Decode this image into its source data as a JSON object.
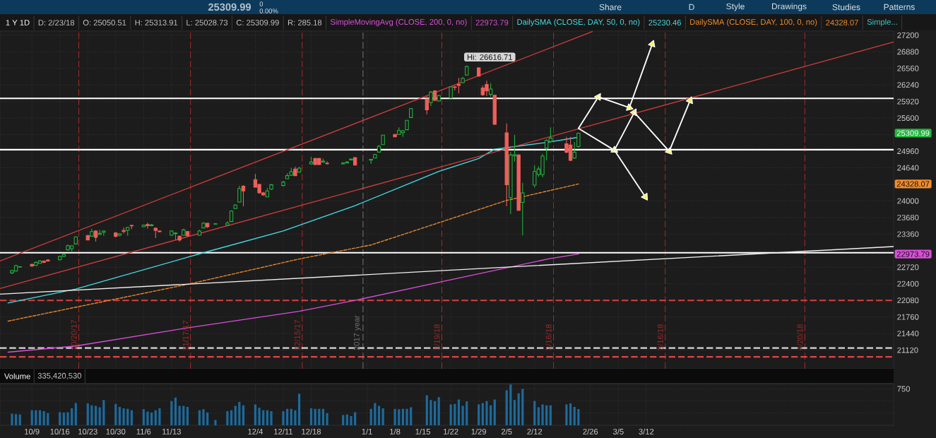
{
  "chart_data": [
    {
      "type": "candlestick",
      "x": [
        "2017-10-04",
        "2017-10-05",
        "2017-10-06",
        "2017-10-09",
        "2017-10-10",
        "2017-10-11",
        "2017-10-12",
        "2017-10-13",
        "2017-10-16",
        "2017-10-17",
        "2017-10-18",
        "2017-10-19",
        "2017-10-20",
        "2017-10-23",
        "2017-10-24",
        "2017-10-25",
        "2017-10-26",
        "2017-10-27",
        "2017-10-30",
        "2017-10-31",
        "2017-11-01",
        "2017-11-02",
        "2017-11-03",
        "2017-11-06",
        "2017-11-07",
        "2017-11-08",
        "2017-11-09",
        "2017-11-10",
        "2017-11-13",
        "2017-11-14",
        "2017-11-15",
        "2017-11-16",
        "2017-11-17",
        "2017-11-20",
        "2017-11-21",
        "2017-11-22",
        "2017-11-24",
        "2017-11-27",
        "2017-11-28",
        "2017-11-29",
        "2017-11-30",
        "2017-12-01",
        "2017-12-04",
        "2017-12-05",
        "2017-12-06",
        "2017-12-07",
        "2017-12-08",
        "2017-12-11",
        "2017-12-12",
        "2017-12-13",
        "2017-12-14",
        "2017-12-15",
        "2017-12-18",
        "2017-12-19",
        "2017-12-20",
        "2017-12-21",
        "2017-12-22",
        "2017-12-26",
        "2017-12-27",
        "2017-12-28",
        "2017-12-29",
        "2018-01-02",
        "2018-01-03",
        "2018-01-04",
        "2018-01-05",
        "2018-01-08",
        "2018-01-09",
        "2018-01-10",
        "2018-01-11",
        "2018-01-12",
        "2018-01-16",
        "2018-01-17",
        "2018-01-18",
        "2018-01-19",
        "2018-01-22",
        "2018-01-23",
        "2018-01-24",
        "2018-01-25",
        "2018-01-26",
        "2018-01-29",
        "2018-01-30",
        "2018-01-31",
        "2018-02-01",
        "2018-02-02",
        "2018-02-05",
        "2018-02-06",
        "2018-02-07",
        "2018-02-08",
        "2018-02-09",
        "2018-02-12",
        "2018-02-13",
        "2018-02-14",
        "2018-02-15",
        "2018-02-16",
        "2018-02-20",
        "2018-02-21",
        "2018-02-22",
        "2018-02-23"
      ],
      "ohlc": [
        [
          22610,
          22673,
          22591,
          22655
        ],
        [
          22646,
          22769,
          22637,
          22751
        ],
        [
          22723,
          22737,
          22710,
          22732
        ],
        [
          22773,
          22791,
          22728,
          22746
        ],
        [
          22755,
          22828,
          22746,
          22814
        ],
        [
          22796,
          22855,
          22787,
          22842
        ],
        [
          22837,
          22855,
          22801,
          22814
        ],
        [
          22860,
          22874,
          22828,
          22842
        ],
        [
          22864,
          22942,
          22855,
          22928
        ],
        [
          22928,
          22983,
          22919,
          22965
        ],
        [
          23056,
          23156,
          23046,
          23137
        ],
        [
          23078,
          23147,
          23024,
          23133
        ],
        [
          23169,
          23319,
          23160,
          23306
        ],
        [
          23329,
          23347,
          23238,
          23247
        ],
        [
          23319,
          23465,
          23310,
          23410
        ],
        [
          23420,
          23438,
          23215,
          23297
        ],
        [
          23351,
          23442,
          23342,
          23374
        ],
        [
          23397,
          23433,
          23329,
          23420
        ],
        [
          23383,
          23401,
          23292,
          23319
        ],
        [
          23338,
          23379,
          23319,
          23365
        ],
        [
          23429,
          23488,
          23374,
          23410
        ],
        [
          23433,
          23501,
          23329,
          23488
        ],
        [
          23529,
          23542,
          23456,
          23520
        ],
        [
          23501,
          23547,
          23492,
          23533
        ],
        [
          23547,
          23579,
          23465,
          23524
        ],
        [
          23524,
          23556,
          23511,
          23538
        ],
        [
          23474,
          23488,
          23283,
          23429
        ],
        [
          23420,
          23433,
          23392,
          23406
        ],
        [
          23338,
          23433,
          23329,
          23420
        ],
        [
          23369,
          23392,
          23251,
          23383
        ],
        [
          23319,
          23329,
          23215,
          23247
        ],
        [
          23338,
          23465,
          23329,
          23442
        ],
        [
          23410,
          23420,
          23319,
          23329
        ],
        [
          23338,
          23442,
          23329,
          23420
        ],
        [
          23479,
          23593,
          23470,
          23570
        ],
        [
          23570,
          23579,
          23479,
          23501
        ],
        [
          23552,
          23574,
          23542,
          23560
        ],
        [
          23533,
          23611,
          23520,
          23574
        ],
        [
          23602,
          23820,
          23593,
          23806
        ],
        [
          23852,
          23938,
          23843,
          23920
        ],
        [
          23979,
          24293,
          23970,
          24239
        ],
        [
          24284,
          24302,
          23897,
          24193
        ],
        [
          24411,
          24521,
          24257,
          24266
        ],
        [
          24320,
          24330,
          24138,
          24157
        ],
        [
          24157,
          24175,
          24102,
          24116
        ],
        [
          24079,
          24248,
          24070,
          24193
        ],
        [
          24229,
          24330,
          24211,
          24311
        ],
        [
          24298,
          24384,
          24284,
          24366
        ],
        [
          24430,
          24534,
          24421,
          24489
        ],
        [
          24498,
          24639,
          24484,
          24566
        ],
        [
          24616,
          24662,
          24480,
          24489
        ],
        [
          24557,
          24657,
          24548,
          24634
        ],
        [
          24715,
          24851,
          24701,
          24751
        ],
        [
          24819,
          24830,
          24692,
          24701
        ],
        [
          24819,
          24830,
          24690,
          24701
        ],
        [
          24751,
          24819,
          24738,
          24769
        ],
        [
          24728,
          24765,
          24701,
          24719
        ],
        [
          24715,
          24747,
          24706,
          24733
        ],
        [
          24733,
          24765,
          24728,
          24751
        ],
        [
          24792,
          24819,
          24788,
          24810
        ],
        [
          24838,
          24842,
          24688,
          24692
        ],
        [
          24788,
          24810,
          24715,
          24805
        ],
        [
          24829,
          24906,
          24824,
          24897
        ],
        [
          24942,
          25079,
          24933,
          25056
        ],
        [
          25088,
          25279,
          25079,
          25270
        ],
        [
          25284,
          25293,
          25229,
          25238
        ],
        [
          25284,
          25420,
          25275,
          25361
        ],
        [
          25320,
          25370,
          25238,
          25352
        ],
        [
          25375,
          25566,
          25366,
          25557
        ],
        [
          25611,
          25793,
          25602,
          25784
        ],
        [
          25966,
          26030,
          25670,
          25761
        ],
        [
          25898,
          26125,
          25830,
          26102
        ],
        [
          26125,
          26140,
          25930,
          25943
        ],
        [
          25930,
          26050,
          25920,
          26034
        ],
        [
          25989,
          26212,
          25980,
          26203
        ],
        [
          26203,
          26226,
          26135,
          26194
        ],
        [
          26253,
          26376,
          26080,
          26230
        ],
        [
          26285,
          26398,
          26270,
          26366
        ],
        [
          26430,
          26616.71,
          26420,
          26594
        ],
        [
          26571,
          26580,
          26400,
          26412
        ],
        [
          26180,
          26230,
          26030,
          26048
        ],
        [
          26248,
          26321,
          26025,
          26125
        ],
        [
          26057,
          26275,
          26012,
          26162
        ],
        [
          26043,
          26050,
          25470,
          25479
        ],
        [
          25315,
          25497,
          23896,
          24314
        ],
        [
          24064,
          24942,
          23746,
          24888
        ],
        [
          24870,
          25274,
          24760,
          24893
        ],
        [
          24888,
          24900,
          23805,
          23819
        ],
        [
          23973,
          24351,
          23336,
          24155
        ],
        [
          24305,
          24692,
          24260,
          24569
        ],
        [
          24510,
          24669,
          24465,
          24615
        ],
        [
          24510,
          24910,
          24455,
          24865
        ],
        [
          25020,
          25193,
          24783,
          25170
        ],
        [
          25147,
          25420,
          25125,
          25215
        ],
        [
          25102,
          25238,
          24920,
          24942
        ],
        [
          25079,
          25238,
          24770,
          24783
        ],
        [
          24829,
          25138,
          24810,
          24942
        ],
        [
          25050.51,
          25313.91,
          25028.73,
          25309.99
        ]
      ],
      "colors": [
        "#22b53c",
        "#22b53c",
        "#22b53c",
        "#ef5f5a",
        "#22b53c",
        "#22b53c",
        "#ef5f5a",
        "#ef5f5a",
        "#22b53c",
        "#22b53c",
        "#22b53c",
        "#22b53c",
        "#22b53c",
        "#ef5f5a",
        "#22b53c",
        "#ef5f5a",
        "#22b53c",
        "#22b53c",
        "#ef5f5a",
        "#22b53c",
        "#ef5f5a",
        "#22b53c",
        "#ef5f5a",
        "#22b53c",
        "#ef5f5a",
        "#22b53c",
        "#ef5f5a",
        "#ef5f5a",
        "#22b53c",
        "#22b53c",
        "#ef5f5a",
        "#22b53c",
        "#ef5f5a",
        "#22b53c",
        "#22b53c",
        "#ef5f5a",
        "#22b53c",
        "#22b53c",
        "#22b53c",
        "#22b53c",
        "#22b53c",
        "#ef5f5a",
        "#ef5f5a",
        "#ef5f5a",
        "#ef5f5a",
        "#22b53c",
        "#22b53c",
        "#22b53c",
        "#22b53c",
        "#22b53c",
        "#ef5f5a",
        "#22b53c",
        "#22b53c",
        "#ef5f5a",
        "#ef5f5a",
        "#22b53c",
        "#ef5f5a",
        "#22b53c",
        "#22b53c",
        "#22b53c",
        "#ef5f5a",
        "#22b53c",
        "#22b53c",
        "#22b53c",
        "#22b53c",
        "#ef5f5a",
        "#22b53c",
        "#22b53c",
        "#22b53c",
        "#22b53c",
        "#ef5f5a",
        "#22b53c",
        "#ef5f5a",
        "#22b53c",
        "#22b53c",
        "#ef5f5a",
        "#ef5f5a",
        "#22b53c",
        "#22b53c",
        "#ef5f5a",
        "#ef5f5a",
        "#ef5f5a",
        "#22b53c",
        "#ef5f5a",
        "#ef5f5a",
        "#22b53c",
        "#22b53c",
        "#ef5f5a",
        "#22b53c",
        "#22b53c",
        "#22b53c",
        "#22b53c",
        "#22b53c",
        "#22b53c",
        "#ef5f5a",
        "#ef5f5a",
        "#22b53c",
        "#22b53c"
      ],
      "series": [
        {
          "name": "SimpleMovingAvg (CLOSE, 200, 0, no)",
          "type": "line",
          "color": "#d94fd9",
          "x": [
            "2017-10-03",
            "2017-10-20",
            "2017-11-17",
            "2017-12-15",
            "2017-12-29",
            "2018-01-19",
            "2018-02-16",
            "2018-02-23"
          ],
          "values": [
            21080,
            21200,
            21550,
            21870,
            22080,
            22430,
            22890,
            22973.79
          ]
        },
        {
          "name": "DailySMA (CLOSE, DAY, 50, 0, no)",
          "type": "line",
          "color": "#45dde6",
          "x": [
            "2017-10-03",
            "2017-10-20",
            "2017-11-21",
            "2017-12-11",
            "2017-12-29",
            "2018-01-19",
            "2018-01-29",
            "2018-02-02",
            "2018-02-07",
            "2018-02-15",
            "2018-02-23"
          ],
          "values": [
            22030,
            22300,
            23000,
            23420,
            23910,
            24570,
            24820,
            25000,
            25050,
            25130,
            25230.46
          ]
        },
        {
          "name": "DailySMA (CLOSE, DAY, 100, 0, no)",
          "type": "line",
          "color": "#f08c2c",
          "line_style": "dashed",
          "x": [
            "2017-10-03",
            "2017-11-17",
            "2017-12-15",
            "2018-01-02",
            "2018-01-19",
            "2018-02-05",
            "2018-02-23"
          ],
          "values": [
            21680,
            22390,
            22880,
            23150,
            23580,
            24010,
            24328.07
          ]
        },
        {
          "type": "line",
          "color": "#d43c3c",
          "x": [
            "2017-10-01",
            "2018-02-26T12:00"
          ],
          "values": [
            22840,
            27270
          ]
        },
        {
          "type": "line",
          "color": "#d43c3c",
          "x": [
            "2017-10-01",
            "2018-05-13"
          ],
          "values": [
            22310,
            27070
          ]
        },
        {
          "type": "line",
          "color": "#f0f0f0",
          "x": [
            "2017-10-01",
            "2018-05-13"
          ],
          "values": [
            22200,
            23120
          ]
        },
        {
          "type": "line",
          "color": "#ffffff",
          "marker": "triangle",
          "x": [
            "2018-02-23",
            "2018-02-28"
          ],
          "values": [
            25400,
            26010
          ]
        },
        {
          "type": "line",
          "color": "#ffffff",
          "marker": "triangle",
          "x": [
            "2018-02-28",
            "2018-03-07T18:00"
          ],
          "values": [
            26010,
            25800
          ]
        },
        {
          "type": "line",
          "color": "#ffffff",
          "marker": "triangle",
          "x": [
            "2018-03-07T18:00",
            "2018-03-13T12:00"
          ],
          "values": [
            25800,
            27030
          ]
        },
        {
          "type": "line",
          "color": "#ffffff",
          "marker": "triangle",
          "x": [
            "2018-02-23",
            "2018-03-04"
          ],
          "values": [
            25400,
            24980
          ]
        },
        {
          "type": "line",
          "color": "#ffffff",
          "marker": "triangle",
          "x": [
            "2018-03-04",
            "2018-03-09"
          ],
          "values": [
            24980,
            25710
          ]
        },
        {
          "type": "line",
          "color": "#ffffff",
          "marker": "triangle",
          "x": [
            "2018-03-09",
            "2018-03-17T18:00"
          ],
          "values": [
            25710,
            24960
          ]
        },
        {
          "type": "line",
          "color": "#ffffff",
          "marker": "triangle",
          "x": [
            "2018-03-17T18:00",
            "2018-03-23"
          ],
          "values": [
            24960,
            25940
          ]
        },
        {
          "type": "line",
          "color": "#ffffff",
          "marker": "triangle",
          "x": [
            "2018-03-04",
            "2018-03-11T18:00"
          ],
          "values": [
            24980,
            24080
          ]
        }
      ],
      "xlim": [
        "2017-10-01",
        "2018-05-13"
      ],
      "ylim": [
        20760,
        27280
      ],
      "xticks": [
        "2017-10-09",
        "2017-10-16",
        "2017-10-23",
        "2017-10-30",
        "2017-11-06",
        "2017-11-13",
        "2017-12-04",
        "2017-12-11",
        "2017-12-18",
        "2018-01-01",
        "2018-01-08",
        "2018-01-15",
        "2018-01-22",
        "2018-01-29",
        "2018-02-05",
        "2018-02-12",
        "2018-02-26",
        "2018-03-05",
        "2018-03-12"
      ],
      "yticks": [
        21120,
        21440,
        21760,
        22080,
        22400,
        22720,
        {
          "value": 23040,
          "label": null
        },
        23360,
        23680,
        24000,
        {
          "value": 24320,
          "label": null
        },
        24640,
        24960,
        {
          "value": 25280,
          "label": null
        },
        25600,
        25920,
        26240,
        26560,
        26880,
        27200
      ],
      "grid": true,
      "tick_labels": "y",
      "legend": "top right",
      "ref_lines": [
        {
          "axis": "x",
          "value": "2017-10-20T18:00",
          "label": "10/20/17",
          "color": "#a02828",
          "line_style": "dashed"
        },
        {
          "axis": "x",
          "value": "2017-11-17T18:00",
          "label": "11/17/17",
          "color": "#a02828",
          "line_style": "dashed"
        },
        {
          "axis": "x",
          "value": "2017-12-15T18:00",
          "label": "12/15/17",
          "color": "#a02828",
          "line_style": "dashed"
        },
        {
          "axis": "x",
          "value": "2017-12-31",
          "label": "2017 year",
          "color": "#707070",
          "line_style": "dashed"
        },
        {
          "axis": "x",
          "value": "2018-01-19T18:00",
          "label": "1/19/18",
          "color": "#a02828",
          "line_style": "dashed"
        },
        {
          "axis": "x",
          "value": "2018-02-16T18:00",
          "label": "2/16/18",
          "color": "#a02828",
          "line_style": "dashed"
        },
        {
          "axis": "x",
          "value": "2018-03-16T18:00",
          "label": "3/16/18",
          "color": "#a02828",
          "line_style": "dashed"
        },
        {
          "axis": "x",
          "value": "2018-04-20T18:00",
          "label": "4/20/18",
          "color": "#a02828",
          "line_style": "dashed"
        },
        {
          "axis": "y",
          "value": 25980,
          "color": "#ffffff",
          "line_style": "solid"
        },
        {
          "axis": "y",
          "value": 24990,
          "color": "#ffffff",
          "line_style": "solid"
        },
        {
          "axis": "y",
          "value": 23000,
          "color": "#ffffff",
          "line_style": "solid"
        },
        {
          "axis": "y",
          "value": 22080,
          "color": "#d64040",
          "line_style": "dashed"
        },
        {
          "axis": "y",
          "value": 21160,
          "color": "#d8d8d8",
          "line_style": "dashed"
        },
        {
          "axis": "y",
          "value": 20990,
          "color": "#e04444",
          "line_style": "dashed"
        }
      ],
      "annotations": [
        "1 Y 1D",
        "D: 2/23/18",
        "O: 25050.51",
        "H: 25313.91",
        "L: 25028.73",
        "C: 25309.99",
        "R: 285.18",
        "22973.79",
        "25230.46",
        "24328.07",
        "Simple...",
        "25309.99",
        "0",
        "0.00%",
        "Share",
        "D",
        "Style",
        "Drawings",
        "Studies",
        "Patterns",
        "25309.99",
        "24328.07",
        "22973.79",
        {
          "text": "Hi: 26616.71",
          "x": "2018-01-26",
          "y": 26616.71
        }
      ]
    },
    {
      "type": "bar",
      "x": [
        "2017-10-04",
        "2017-10-05",
        "2017-10-06",
        "2017-10-09",
        "2017-10-10",
        "2017-10-11",
        "2017-10-12",
        "2017-10-13",
        "2017-10-16",
        "2017-10-17",
        "2017-10-18",
        "2017-10-19",
        "2017-10-20",
        "2017-10-23",
        "2017-10-24",
        "2017-10-25",
        "2017-10-26",
        "2017-10-27",
        "2017-10-30",
        "2017-10-31",
        "2017-11-01",
        "2017-11-02",
        "2017-11-03",
        "2017-11-06",
        "2017-11-07",
        "2017-11-08",
        "2017-11-09",
        "2017-11-10",
        "2017-11-13",
        "2017-11-14",
        "2017-11-15",
        "2017-11-16",
        "2017-11-17",
        "2017-11-20",
        "2017-11-21",
        "2017-11-22",
        "2017-11-24",
        "2017-11-27",
        "2017-11-28",
        "2017-11-29",
        "2017-11-30",
        "2017-12-01",
        "2017-12-04",
        "2017-12-05",
        "2017-12-06",
        "2017-12-07",
        "2017-12-08",
        "2017-12-11",
        "2017-12-12",
        "2017-12-13",
        "2017-12-14",
        "2017-12-15",
        "2017-12-18",
        "2017-12-19",
        "2017-12-20",
        "2017-12-21",
        "2017-12-22",
        "2017-12-26",
        "2017-12-27",
        "2017-12-28",
        "2017-12-29",
        "2018-01-02",
        "2018-01-03",
        "2018-01-04",
        "2018-01-05",
        "2018-01-08",
        "2018-01-09",
        "2018-01-10",
        "2018-01-11",
        "2018-01-12",
        "2018-01-16",
        "2018-01-17",
        "2018-01-18",
        "2018-01-19",
        "2018-01-22",
        "2018-01-23",
        "2018-01-24",
        "2018-01-25",
        "2018-01-26",
        "2018-01-29",
        "2018-01-30",
        "2018-01-31",
        "2018-02-01",
        "2018-02-02",
        "2018-02-05",
        "2018-02-06",
        "2018-02-07",
        "2018-02-08",
        "2018-02-09",
        "2018-02-12",
        "2018-02-13",
        "2018-02-14",
        "2018-02-15",
        "2018-02-16",
        "2018-02-20",
        "2018-02-21",
        "2018-02-22",
        "2018-02-23"
      ],
      "values": [
        240,
        230,
        220,
        310,
        310,
        310,
        290,
        250,
        270,
        260,
        270,
        350,
        460,
        450,
        410,
        400,
        370,
        520,
        440,
        380,
        350,
        340,
        310,
        330,
        280,
        260,
        310,
        350,
        500,
        570,
        400,
        400,
        380,
        310,
        330,
        260,
        110,
        290,
        310,
        400,
        480,
        410,
        430,
        360,
        310,
        310,
        290,
        290,
        340,
        340,
        310,
        650,
        350,
        340,
        340,
        340,
        250,
        210,
        220,
        190,
        270,
        340,
        460,
        400,
        350,
        340,
        330,
        340,
        340,
        370,
        620,
        520,
        500,
        580,
        430,
        440,
        530,
        400,
        490,
        430,
        460,
        500,
        410,
        530,
        720,
        840,
        520,
        660,
        750,
        500,
        370,
        430,
        410,
        410,
        430,
        450,
        380,
        335.42
      ],
      "color": "#1d6a9c",
      "xlim": [
        "2017-10-01",
        "2018-05-13"
      ],
      "ylim": [
        0,
        859
      ],
      "xticks": [
        {
          "value": "2017-10-09",
          "label": "10/9"
        },
        {
          "value": "2017-10-16",
          "label": "10/16"
        },
        {
          "value": "2017-10-23",
          "label": "10/23"
        },
        {
          "value": "2017-10-30",
          "label": "10/30"
        },
        {
          "value": "2017-11-06",
          "label": "11/6"
        },
        {
          "value": "2017-11-13",
          "label": "11/13"
        },
        {
          "value": "2017-12-04",
          "label": "12/4"
        },
        {
          "value": "2017-12-11",
          "label": "12/11"
        },
        {
          "value": "2017-12-18",
          "label": "12/18"
        },
        {
          "value": "2018-01-01",
          "label": "1/1"
        },
        {
          "value": "2018-01-08",
          "label": "1/8"
        },
        {
          "value": "2018-01-15",
          "label": "1/15"
        },
        {
          "value": "2018-01-22",
          "label": "1/22"
        },
        {
          "value": "2018-01-29",
          "label": "1/29"
        },
        {
          "value": "2018-02-05",
          "label": "2/5"
        },
        {
          "value": "2018-02-12",
          "label": "2/12"
        },
        {
          "value": "2018-02-26",
          "label": "2/26"
        },
        {
          "value": "2018-03-05",
          "label": "3/5"
        },
        {
          "value": "2018-03-12",
          "label": "3/12"
        }
      ],
      "yticks": [
        {
          "value": 0,
          "label": null
        },
        {
          "value": 250,
          "label": null
        },
        {
          "value": 500,
          "label": null
        },
        750
      ],
      "grid": true,
      "annotations": [
        "Volume",
        "335,420,530"
      ]
    }
  ]
}
